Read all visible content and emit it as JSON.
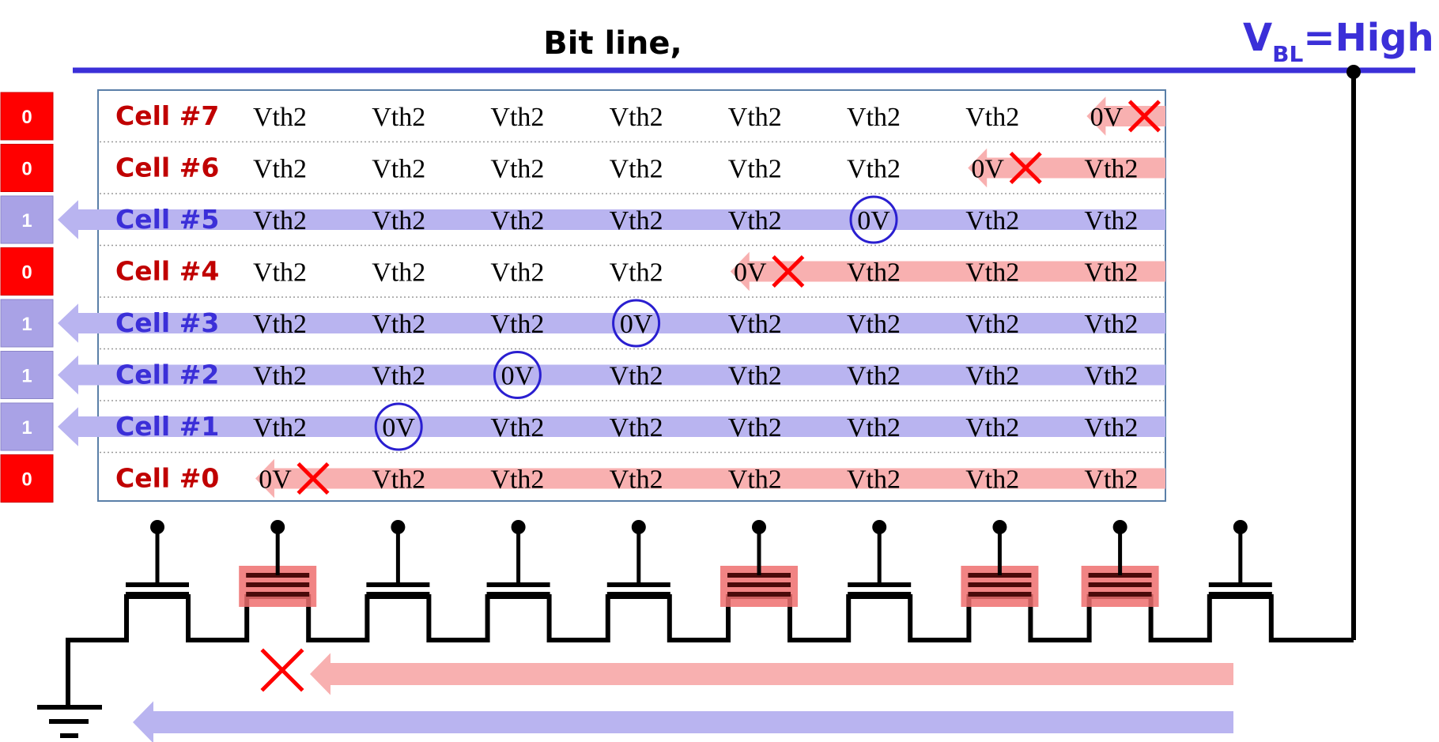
{
  "title": "Bit line,",
  "vbl": {
    "symbol": "V",
    "subscript": "BL",
    "value": "=High"
  },
  "colors": {
    "bitline": "#3b2fd8",
    "label_zero": "#c00000",
    "label_one": "#3b2fd8",
    "path_off": "#f8b0b0",
    "path_on": "#b9b4f0",
    "cross": "#ff0000",
    "box_zero": "#ff0000",
    "box_one": "#a9a2e6",
    "charged_gate": "#ee6f6f",
    "circle": "#2a1fd0"
  },
  "rows": [
    {
      "label": "Cell #7",
      "bit": "0",
      "state": "blocked",
      "cells": [
        "Vth2",
        "Vth2",
        "Vth2",
        "Vth2",
        "Vth2",
        "Vth2",
        "Vth2",
        "0V"
      ]
    },
    {
      "label": "Cell #6",
      "bit": "0",
      "state": "blocked",
      "cells": [
        "Vth2",
        "Vth2",
        "Vth2",
        "Vth2",
        "Vth2",
        "Vth2",
        "0V",
        "Vth2"
      ]
    },
    {
      "label": "Cell #5",
      "bit": "1",
      "state": "conducting",
      "cells": [
        "Vth2",
        "Vth2",
        "Vth2",
        "Vth2",
        "Vth2",
        "0V",
        "Vth2",
        "Vth2"
      ]
    },
    {
      "label": "Cell #4",
      "bit": "0",
      "state": "blocked",
      "cells": [
        "Vth2",
        "Vth2",
        "Vth2",
        "Vth2",
        "0V",
        "Vth2",
        "Vth2",
        "Vth2"
      ]
    },
    {
      "label": "Cell #3",
      "bit": "1",
      "state": "conducting",
      "cells": [
        "Vth2",
        "Vth2",
        "Vth2",
        "0V",
        "Vth2",
        "Vth2",
        "Vth2",
        "Vth2"
      ]
    },
    {
      "label": "Cell #2",
      "bit": "1",
      "state": "conducting",
      "cells": [
        "Vth2",
        "Vth2",
        "0V",
        "Vth2",
        "Vth2",
        "Vth2",
        "Vth2",
        "Vth2"
      ]
    },
    {
      "label": "Cell #1",
      "bit": "1",
      "state": "conducting",
      "cells": [
        "Vth2",
        "0V",
        "Vth2",
        "Vth2",
        "Vth2",
        "Vth2",
        "Vth2",
        "Vth2"
      ]
    },
    {
      "label": "Cell #0",
      "bit": "0",
      "state": "blocked",
      "cells": [
        "0V",
        "Vth2",
        "Vth2",
        "Vth2",
        "Vth2",
        "Vth2",
        "Vth2",
        "Vth2"
      ]
    }
  ],
  "transistors": [
    {
      "charged": false
    },
    {
      "charged": true
    },
    {
      "charged": false
    },
    {
      "charged": false
    },
    {
      "charged": false
    },
    {
      "charged": true
    },
    {
      "charged": false
    },
    {
      "charged": true
    },
    {
      "charged": true
    },
    {
      "charged": false
    }
  ],
  "bottom_arrows": [
    {
      "kind": "blocked"
    },
    {
      "kind": "conducting"
    }
  ]
}
